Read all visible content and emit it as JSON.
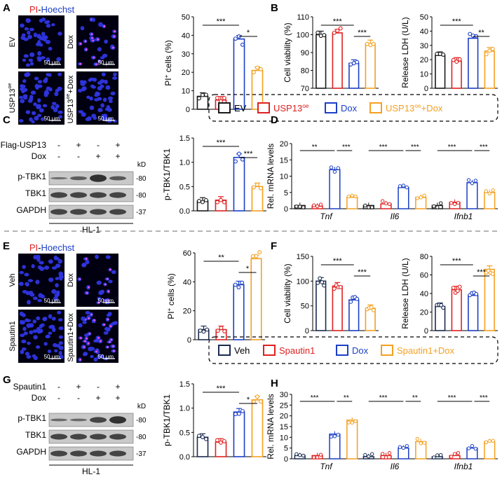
{
  "colors": {
    "ev": "#1a1a1a",
    "usp": "#e02020",
    "dox": "#1c3fc7",
    "usp_dox": "#f5a020",
    "veh": "#1a2b50",
    "grid_blue": "#2e35e0"
  },
  "top": {
    "panel_labels": [
      "A",
      "B",
      "C",
      "D"
    ],
    "micro_title": {
      "pi": "PI",
      "sep": "-",
      "hoechst": "Hoechst"
    },
    "micro_labels": [
      "EV",
      "Dox",
      "USP13oe",
      "USP13oe+Dox"
    ],
    "scale_bar": "50 μm",
    "legend": [
      "EV",
      "USP13oe",
      "Dox",
      "USP13oe+Dox"
    ],
    "blot": {
      "row_labels": [
        "Flag-USP13",
        "Dox"
      ],
      "signs": [
        [
          "-",
          "+",
          "-",
          "+"
        ],
        [
          "-",
          "-",
          "+",
          "+"
        ]
      ],
      "bands": [
        "p-TBK1",
        "TBK1",
        "GAPDH"
      ],
      "kd_label": "kD",
      "kd": [
        "80",
        "80",
        "37"
      ],
      "cell_line": "HL-1"
    }
  },
  "bottom": {
    "panel_labels": [
      "E",
      "F",
      "G",
      "H"
    ],
    "micro_title": {
      "pi": "PI",
      "sep": "-",
      "hoechst": "Hoechst"
    },
    "micro_labels": [
      "Veh",
      "Dox",
      "Spautin1",
      "Spautin1+Dox"
    ],
    "scale_bar": "50 μm",
    "legend": [
      "Veh",
      "Spautin1",
      "Dox",
      "Spautin1+Dox"
    ],
    "blot": {
      "row_labels": [
        "Spautin1",
        "Dox"
      ],
      "signs": [
        [
          "-",
          "+",
          "-",
          "+"
        ],
        [
          "-",
          "-",
          "+",
          "+"
        ]
      ],
      "bands": [
        "p-TBK1",
        "TBK1",
        "GAPDH"
      ],
      "kd_label": "kD",
      "kd": [
        "80",
        "80",
        "37"
      ],
      "cell_line": "HL-1"
    }
  },
  "chart_data": [
    {
      "id": "A_pi",
      "type": "bar",
      "ylabel": "PI+ cells (%)",
      "ylim": [
        0,
        50
      ],
      "yticks": [
        "0",
        "10",
        "20",
        "30",
        "40",
        "50"
      ],
      "values": [
        7,
        5,
        38,
        21
      ],
      "sig": [
        {
          "a": 0,
          "b": 2,
          "label": "***"
        },
        {
          "a": 2,
          "b": 3,
          "label": "*"
        }
      ]
    },
    {
      "id": "B_via",
      "type": "bar",
      "ylabel": "Cell viability (%)",
      "ylim": [
        70,
        110
      ],
      "yticks": [
        "70",
        "80",
        "90",
        "100",
        "110"
      ],
      "values": [
        100,
        101,
        84,
        95
      ],
      "sig": [
        {
          "a": 0,
          "b": 2,
          "label": "***"
        },
        {
          "a": 2,
          "b": 3,
          "label": "***"
        }
      ]
    },
    {
      "id": "B_ldh",
      "type": "bar",
      "ylabel": "Release LDH (U/L)",
      "ylim": [
        0,
        50
      ],
      "yticks": [
        "0",
        "10",
        "20",
        "30",
        "40",
        "50"
      ],
      "values": [
        23,
        19,
        35,
        26
      ],
      "sig": [
        {
          "a": 0,
          "b": 2,
          "label": "***"
        },
        {
          "a": 2,
          "b": 3,
          "label": "**"
        }
      ]
    },
    {
      "id": "C_ratio",
      "type": "bar",
      "ylabel": "p-TBK1/TBK1",
      "ylim": [
        0,
        1.5
      ],
      "yticks": [
        "0.0",
        "0.5",
        "1.0",
        "1.5"
      ],
      "values": [
        0.2,
        0.22,
        1.1,
        0.5
      ],
      "sig": [
        {
          "a": 0,
          "b": 2,
          "label": "***"
        },
        {
          "a": 2,
          "b": 3,
          "label": "***"
        }
      ]
    },
    {
      "id": "D_mrna",
      "type": "bar",
      "ylabel": "Rel. mRNA levels",
      "ylim": [
        0,
        20
      ],
      "yticks": [
        "0",
        "5",
        "10",
        "15",
        "20"
      ],
      "genes": [
        "Tnf",
        "Il6",
        "Ifnb1"
      ],
      "values": [
        [
          1,
          0.8,
          12,
          3.5
        ],
        [
          1,
          1.5,
          6.5,
          3.5
        ],
        [
          1,
          2,
          8,
          5
        ]
      ],
      "sig": [
        [
          "**",
          "***"
        ],
        [
          "***",
          "***"
        ],
        [
          "***",
          "***"
        ]
      ]
    },
    {
      "id": "E_pi",
      "type": "bar",
      "ylabel": "PI+ cells (%)",
      "ylim": [
        0,
        60
      ],
      "yticks": [
        "0",
        "20",
        "40",
        "60"
      ],
      "values": [
        7,
        7,
        38,
        56
      ],
      "sig": [
        {
          "a": 0,
          "b": 2,
          "label": "**"
        },
        {
          "a": 2,
          "b": 3,
          "label": "*"
        }
      ]
    },
    {
      "id": "F_via",
      "type": "bar",
      "ylabel": "Cell viability (%)",
      "ylim": [
        0,
        150
      ],
      "yticks": [
        "0",
        "50",
        "100",
        "150"
      ],
      "values": [
        100,
        90,
        62,
        45
      ],
      "sig": [
        {
          "a": 0,
          "b": 2,
          "label": "***"
        },
        {
          "a": 2,
          "b": 3,
          "label": "***"
        }
      ]
    },
    {
      "id": "F_ldh",
      "type": "bar",
      "ylabel": "Release LDH (U/L)",
      "ylim": [
        0,
        80
      ],
      "yticks": [
        "0",
        "20",
        "40",
        "60",
        "80"
      ],
      "values": [
        26,
        44,
        38,
        66
      ],
      "sig": [
        {
          "a": 0,
          "b": 2,
          "label": "***"
        },
        {
          "a": 2,
          "b": 3,
          "label": "***"
        }
      ]
    },
    {
      "id": "G_ratio",
      "type": "bar",
      "ylabel": "p-TBK1/TBK1",
      "ylim": [
        0,
        1.5
      ],
      "yticks": [
        "0.0",
        "0.5",
        "1.0",
        "1.5"
      ],
      "values": [
        0.4,
        0.3,
        0.92,
        1.17
      ],
      "sig": [
        {
          "a": 0,
          "b": 2,
          "label": "***"
        },
        {
          "a": 2,
          "b": 3,
          "label": "*"
        }
      ]
    },
    {
      "id": "H_mrna",
      "type": "bar",
      "ylabel": "Rel. mRNA levels",
      "ylim": [
        0,
        30
      ],
      "yticks": [
        "0",
        "5",
        "10",
        "15",
        "20",
        "25",
        "30"
      ],
      "genes": [
        "Tnf",
        "Il6",
        "Ifnb1"
      ],
      "values": [
        [
          1.5,
          1.5,
          11.5,
          18
        ],
        [
          1,
          1.5,
          5,
          8
        ],
        [
          1,
          1.5,
          5,
          8
        ]
      ],
      "sig": [
        [
          "***",
          "**"
        ],
        [
          "***",
          "**"
        ],
        [
          "***",
          "***"
        ]
      ]
    }
  ]
}
